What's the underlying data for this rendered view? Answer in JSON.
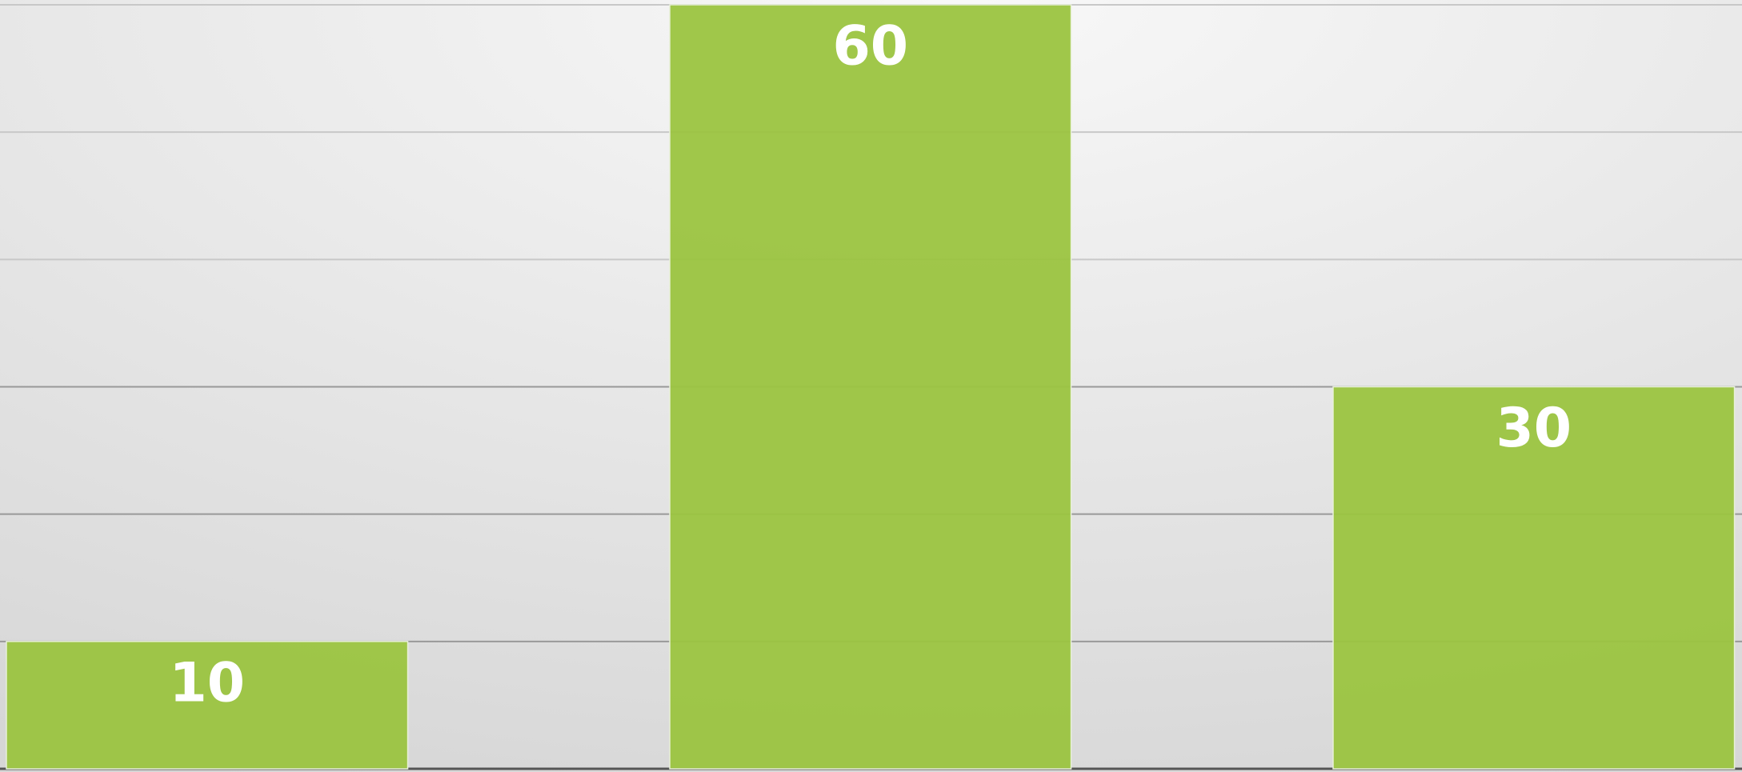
{
  "chart_data": {
    "type": "bar",
    "categories": [
      null,
      null,
      null
    ],
    "values": [
      10,
      60,
      30
    ],
    "color": "#9bc440",
    "ylim": [
      0,
      60
    ],
    "yticks": [
      0,
      10,
      20,
      30,
      40,
      50,
      60
    ],
    "grid": true
  }
}
